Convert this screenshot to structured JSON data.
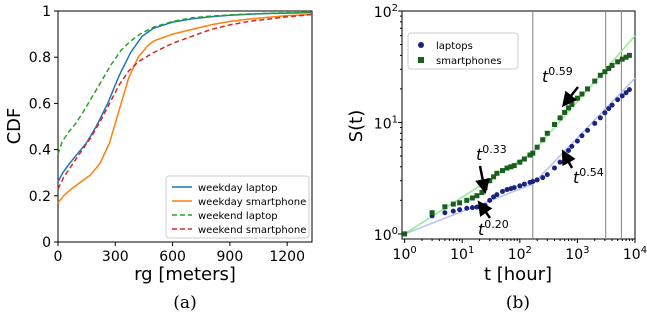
{
  "chart_data": [
    {
      "panel_label": "(a)",
      "type": "line",
      "xlabel": "rg [meters]",
      "ylabel": "CDF",
      "xlim": [
        0,
        1330
      ],
      "ylim": [
        0,
        1.0
      ],
      "x_ticks": [
        0,
        300,
        600,
        900,
        1200
      ],
      "y_ticks": [
        0.0,
        0.2,
        0.4,
        0.6,
        0.8,
        1.0
      ],
      "legend_position": "lower-right",
      "series": [
        {
          "name": "weekday laptop",
          "color": "#1f77b4",
          "dash": "solid",
          "points": [
            [
              0,
              0.26
            ],
            [
              25,
              0.3
            ],
            [
              60,
              0.34
            ],
            [
              100,
              0.38
            ],
            [
              150,
              0.43
            ],
            [
              200,
              0.5
            ],
            [
              260,
              0.6
            ],
            [
              320,
              0.72
            ],
            [
              380,
              0.82
            ],
            [
              440,
              0.89
            ],
            [
              500,
              0.925
            ],
            [
              600,
              0.952
            ],
            [
              700,
              0.966
            ],
            [
              800,
              0.975
            ],
            [
              900,
              0.982
            ],
            [
              1000,
              0.986
            ],
            [
              1100,
              0.989
            ],
            [
              1200,
              0.991
            ],
            [
              1330,
              0.993
            ]
          ]
        },
        {
          "name": "weekday smartphone",
          "color": "#ff7f0e",
          "dash": "solid",
          "points": [
            [
              0,
              0.17
            ],
            [
              30,
              0.2
            ],
            [
              70,
              0.23
            ],
            [
              120,
              0.26
            ],
            [
              170,
              0.29
            ],
            [
              220,
              0.34
            ],
            [
              270,
              0.43
            ],
            [
              320,
              0.57
            ],
            [
              370,
              0.71
            ],
            [
              420,
              0.8
            ],
            [
              470,
              0.85
            ],
            [
              500,
              0.87
            ],
            [
              600,
              0.9
            ],
            [
              700,
              0.92
            ],
            [
              800,
              0.94
            ],
            [
              900,
              0.955
            ],
            [
              1000,
              0.965
            ],
            [
              1100,
              0.973
            ],
            [
              1200,
              0.98
            ],
            [
              1330,
              0.985
            ]
          ]
        },
        {
          "name": "weekend laptop",
          "color": "#2ca02c",
          "dash": "dashed",
          "points": [
            [
              0,
              0.38
            ],
            [
              20,
              0.43
            ],
            [
              50,
              0.47
            ],
            [
              90,
              0.51
            ],
            [
              130,
              0.56
            ],
            [
              180,
              0.63
            ],
            [
              230,
              0.7
            ],
            [
              280,
              0.77
            ],
            [
              330,
              0.83
            ],
            [
              380,
              0.87
            ],
            [
              430,
              0.9
            ],
            [
              500,
              0.93
            ],
            [
              600,
              0.955
            ],
            [
              700,
              0.97
            ],
            [
              800,
              0.978
            ],
            [
              900,
              0.983
            ],
            [
              1000,
              0.987
            ],
            [
              1100,
              0.99
            ],
            [
              1200,
              0.992
            ],
            [
              1330,
              0.994
            ]
          ]
        },
        {
          "name": "weekend smartphone",
          "color": "#d62728",
          "dash": "dashed",
          "points": [
            [
              0,
              0.23
            ],
            [
              30,
              0.28
            ],
            [
              70,
              0.33
            ],
            [
              120,
              0.39
            ],
            [
              170,
              0.45
            ],
            [
              220,
              0.52
            ],
            [
              270,
              0.6
            ],
            [
              320,
              0.68
            ],
            [
              370,
              0.74
            ],
            [
              420,
              0.78
            ],
            [
              500,
              0.82
            ],
            [
              600,
              0.86
            ],
            [
              700,
              0.89
            ],
            [
              800,
              0.92
            ],
            [
              900,
              0.94
            ],
            [
              1000,
              0.955
            ],
            [
              1100,
              0.965
            ],
            [
              1200,
              0.975
            ],
            [
              1330,
              0.985
            ]
          ]
        }
      ]
    },
    {
      "panel_label": "(b)",
      "type": "scatter",
      "xlabel": "t [hour]",
      "ylabel": "S(t)",
      "x_scale": "log",
      "y_scale": "log",
      "xlim": [
        0.9,
        10000
      ],
      "ylim": [
        0.9,
        100
      ],
      "x_tick_labels": [
        {
          "value": 1,
          "base": "10",
          "exp": "0"
        },
        {
          "value": 10,
          "base": "10",
          "exp": "1"
        },
        {
          "value": 100,
          "base": "10",
          "exp": "2"
        },
        {
          "value": 1000,
          "base": "10",
          "exp": "3"
        },
        {
          "value": 10000,
          "base": "10",
          "exp": "4"
        }
      ],
      "y_tick_labels": [
        {
          "value": 1,
          "base": "10",
          "exp": "0"
        },
        {
          "value": 10,
          "base": "10",
          "exp": "1"
        },
        {
          "value": 100,
          "base": "10",
          "exp": "2"
        }
      ],
      "vertical_lines": [
        168,
        3100,
        5800
      ],
      "legend_position": "upper-left",
      "series": [
        {
          "name": "laptops",
          "color": "#1a237e",
          "marker": "circle",
          "points": [
            [
              1,
              1.0
            ],
            [
              3,
              1.45
            ],
            [
              5,
              1.55
            ],
            [
              7,
              1.6
            ],
            [
              9,
              1.65
            ],
            [
              12,
              1.7
            ],
            [
              15,
              1.72
            ],
            [
              18,
              1.74
            ],
            [
              22,
              1.76
            ],
            [
              25,
              1.8
            ],
            [
              30,
              2.0
            ],
            [
              35,
              2.15
            ],
            [
              40,
              2.25
            ],
            [
              50,
              2.4
            ],
            [
              60,
              2.5
            ],
            [
              70,
              2.55
            ],
            [
              80,
              2.6
            ],
            [
              100,
              2.7
            ],
            [
              120,
              2.8
            ],
            [
              150,
              2.9
            ],
            [
              168,
              2.95
            ],
            [
              200,
              3.05
            ],
            [
              250,
              3.2
            ],
            [
              300,
              3.4
            ],
            [
              400,
              3.9
            ],
            [
              500,
              4.4
            ],
            [
              600,
              5.0
            ],
            [
              700,
              5.6
            ],
            [
              800,
              6.1
            ],
            [
              1000,
              6.8
            ],
            [
              1200,
              7.6
            ],
            [
              1500,
              8.5
            ],
            [
              2000,
              9.8
            ],
            [
              2500,
              11.0
            ],
            [
              3000,
              12.2
            ],
            [
              3500,
              13.3
            ],
            [
              4000,
              14.3
            ],
            [
              5000,
              16.0
            ],
            [
              6000,
              17.3
            ],
            [
              7000,
              18.5
            ],
            [
              8000,
              19.7
            ]
          ]
        },
        {
          "name": "smartphones",
          "color": "#1b5e20",
          "marker": "square",
          "points": [
            [
              1,
              1.0
            ],
            [
              3,
              1.55
            ],
            [
              5,
              1.75
            ],
            [
              7,
              1.85
            ],
            [
              9,
              1.9
            ],
            [
              12,
              2.0
            ],
            [
              15,
              2.1
            ],
            [
              18,
              2.2
            ],
            [
              22,
              2.35
            ],
            [
              25,
              2.6
            ],
            [
              30,
              3.0
            ],
            [
              35,
              3.25
            ],
            [
              40,
              3.5
            ],
            [
              50,
              3.7
            ],
            [
              60,
              3.9
            ],
            [
              70,
              4.0
            ],
            [
              80,
              4.1
            ],
            [
              100,
              4.4
            ],
            [
              120,
              4.7
            ],
            [
              150,
              5.1
            ],
            [
              168,
              5.3
            ],
            [
              200,
              6.0
            ],
            [
              250,
              7.0
            ],
            [
              300,
              8.0
            ],
            [
              400,
              9.6
            ],
            [
              500,
              11.0
            ],
            [
              600,
              12.3
            ],
            [
              700,
              13.5
            ],
            [
              800,
              14.5
            ],
            [
              1000,
              16.5
            ],
            [
              1200,
              18.0
            ],
            [
              1500,
              20.0
            ],
            [
              2000,
              23.5
            ],
            [
              2500,
              26.5
            ],
            [
              3000,
              28.5
            ],
            [
              3500,
              30.5
            ],
            [
              4000,
              32.5
            ],
            [
              5000,
              35.0
            ],
            [
              6000,
              37.0
            ],
            [
              7000,
              38.5
            ],
            [
              8000,
              40.0
            ]
          ]
        }
      ],
      "fit_lines": [
        {
          "color": "#90ee90",
          "from": [
            1,
            1.0
          ],
          "to": [
            168,
            5.4
          ]
        },
        {
          "color": "#90ee90",
          "from": [
            168,
            5.4
          ],
          "to": [
            10000,
            60
          ]
        },
        {
          "color": "#b0c4ef",
          "from": [
            1,
            1.0
          ],
          "to": [
            168,
            2.8
          ]
        },
        {
          "color": "#b0c4ef",
          "from": [
            168,
            2.8
          ],
          "to": [
            10000,
            25
          ]
        }
      ],
      "annotations": [
        {
          "base": "t",
          "exp": "0.59",
          "arrow_to": [
            650,
            15.5
          ]
        },
        {
          "base": "t",
          "exp": "0.33",
          "arrow_to": [
            24,
            2.65
          ]
        },
        {
          "base": "t",
          "exp": "0.54",
          "arrow_to": [
            620,
            5.0
          ]
        },
        {
          "base": "t",
          "exp": "0.20",
          "arrow_to": [
            22,
            1.76
          ]
        }
      ]
    }
  ]
}
